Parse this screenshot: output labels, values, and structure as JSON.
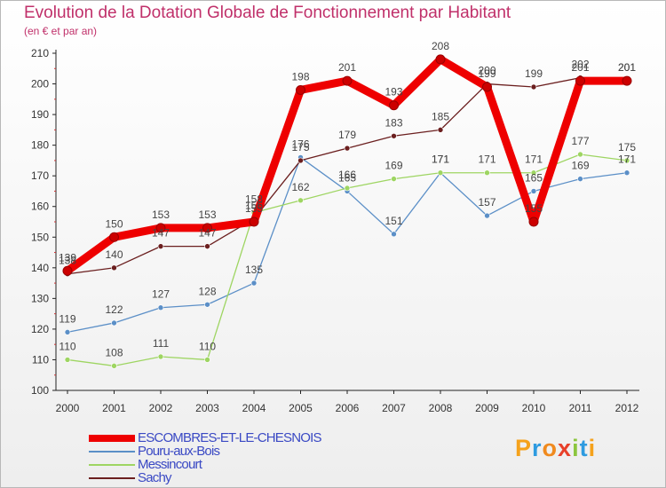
{
  "header": {
    "title": "Evolution de la Dotation Globale de Fonctionnement par Habitant",
    "subtitle": "(en € et par an)"
  },
  "chart_data": {
    "type": "line",
    "title": "Evolution de la Dotation Globale de Fonctionnement par Habitant",
    "subtitle": "(en € et par an)",
    "xlabel": "",
    "ylabel": "",
    "x": [
      "2000",
      "2001",
      "2002",
      "2003",
      "2004",
      "2005",
      "2006",
      "2007",
      "2008",
      "2009",
      "2010",
      "2011",
      "2012"
    ],
    "ylim": [
      100,
      210
    ],
    "yticks": [
      100,
      110,
      120,
      130,
      140,
      150,
      160,
      170,
      180,
      190,
      200,
      210
    ],
    "grid": false,
    "legend_position": "bottom-left",
    "series": [
      {
        "name": "ESCOMBRES-ET-LE-CHESNOIS",
        "color": "#ee0000",
        "values": [
          139,
          150,
          153,
          153,
          155,
          198,
          201,
          193,
          208,
          199,
          155,
          201,
          201
        ]
      },
      {
        "name": "Pouru-aux-Bois",
        "color": "#5b8fc7",
        "values": [
          119,
          122,
          127,
          128,
          135,
          176,
          165,
          151,
          171,
          157,
          165,
          169,
          171
        ]
      },
      {
        "name": "Messincourt",
        "color": "#9ed562",
        "values": [
          110,
          108,
          111,
          110,
          158,
          162,
          166,
          169,
          171,
          171,
          171,
          177,
          175
        ]
      },
      {
        "name": "Sachy",
        "color": "#6b1f1f",
        "values": [
          138,
          140,
          147,
          147,
          156,
          175,
          179,
          183,
          185,
          200,
          199,
          202,
          201
        ]
      }
    ]
  },
  "legend": {
    "items": [
      {
        "label": "ESCOMBRES-ET-LE-CHESNOIS"
      },
      {
        "label": "Pouru-aux-Bois"
      },
      {
        "label": "Messincourt"
      },
      {
        "label": "Sachy"
      }
    ]
  },
  "logo": {
    "chars": [
      "P",
      "r",
      "o",
      "x",
      "i",
      "t",
      "i"
    ],
    "colors": [
      "#f5a21c",
      "#2e9be0",
      "#f08a1e",
      "#e8402a",
      "#8cc63f",
      "#2e9be0",
      "#f5a21c"
    ]
  }
}
